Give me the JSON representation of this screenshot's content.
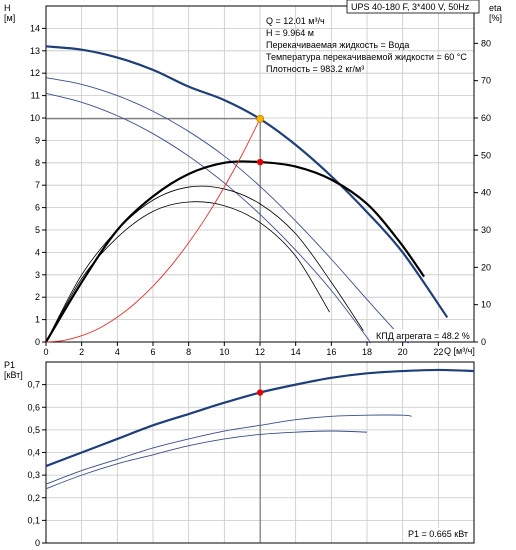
{
  "chart_data": {
    "type": "line",
    "title": "UPS 40-180 F, 3*400 V, 50Hz",
    "top_chart": {
      "xlabel": "Q [м³/ч]",
      "xlim": [
        0,
        24
      ],
      "xticks": [
        0,
        2,
        4,
        6,
        8,
        10,
        12,
        14,
        16,
        18,
        20,
        22
      ],
      "ylabel_left": "H",
      "ylabel_left_unit": "[м]",
      "ylim_left": [
        0,
        15
      ],
      "yticks_left": [
        0,
        1,
        2,
        3,
        4,
        5,
        6,
        7,
        8,
        9,
        10,
        11,
        12,
        13,
        14
      ],
      "ylabel_right": "eta",
      "ylabel_right_unit": "[%]",
      "ylim_right": [
        0,
        90
      ],
      "yticks_right": [
        0,
        10,
        20,
        30,
        40,
        50,
        60,
        70,
        80
      ],
      "info_lines": [
        "Q = 12.01 м³/ч",
        "H = 9.964 м",
        "Перекачиваемая жидкость = Вода",
        "Температура перекачиваемой жидкости = 60 °C",
        "Плотность = 983.2 кг/м³"
      ],
      "efficiency_label": "КПД агрегата = 48.2 %",
      "head_curves": [
        {
          "x": [
            0,
            2,
            4,
            6,
            8,
            10,
            12,
            14,
            16,
            18,
            20,
            22.5
          ],
          "y": [
            13.2,
            13.05,
            12.7,
            12.15,
            11.4,
            10.8,
            9.96,
            8.8,
            7.4,
            5.8,
            4.0,
            1.1
          ]
        },
        {
          "x": [
            0,
            2,
            4,
            6,
            8,
            10,
            12,
            14,
            16,
            18,
            20,
            20.4
          ],
          "y": [
            11.8,
            11.5,
            11.0,
            10.3,
            9.4,
            8.3,
            6.95,
            5.4,
            3.7,
            1.9,
            0.15,
            0
          ]
        },
        {
          "x": [
            0,
            2,
            4,
            6,
            8,
            10,
            12,
            14,
            16,
            18,
            18.1
          ],
          "y": [
            11.1,
            10.7,
            10.1,
            9.3,
            8.3,
            7.1,
            5.7,
            4.1,
            2.3,
            0.2,
            0
          ]
        }
      ],
      "efficiency_curves": [
        {
          "x": [
            0,
            2,
            4,
            6,
            8,
            10,
            12,
            14,
            16,
            18,
            19.8,
            21.2
          ],
          "y": [
            0,
            16,
            30,
            39,
            45,
            48,
            48.2,
            47.0,
            43.5,
            37.0,
            27.0,
            17.5
          ]
        },
        {
          "x": [
            0,
            2,
            4,
            6,
            8,
            10,
            12,
            14,
            16,
            17.8
          ],
          "y": [
            0,
            18,
            30,
            38,
            41.5,
            41.0,
            37.0,
            29.0,
            16.0,
            3.0
          ]
        },
        {
          "x": [
            0,
            2,
            4,
            6,
            8,
            10,
            12,
            14,
            15.9
          ],
          "y": [
            0,
            17,
            28,
            35,
            37.5,
            36.5,
            32.0,
            23.0,
            8.0
          ]
        }
      ],
      "system_curve": {
        "x": [
          0,
          1,
          2,
          3,
          4,
          5,
          6,
          7,
          8,
          9,
          10,
          11,
          12
        ],
        "y": [
          0,
          0.07,
          0.28,
          0.62,
          1.11,
          1.73,
          2.49,
          3.39,
          4.43,
          5.6,
          6.92,
          8.37,
          9.96
        ]
      },
      "duty_point": {
        "x": 12.01,
        "y": 9.964
      },
      "efficiency_point": {
        "x": 12.01,
        "y": 48.2
      },
      "colors": {
        "primary_curve": "#1f3f7a",
        "secondary_curve": "#3a4f8a",
        "efficiency_curve": "#000000",
        "system_curve": "#e03030",
        "duty_point": "#f4b400",
        "point": "#e00000",
        "guide": "#606060"
      }
    },
    "bottom_chart": {
      "xlim": [
        0,
        24
      ],
      "ylabel": "P1",
      "ylabel_unit": "[кВт]",
      "ylim": [
        0,
        0.8
      ],
      "yticks": [
        0,
        0.1,
        0.2,
        0.3,
        0.4,
        0.5,
        0.6,
        0.7
      ],
      "ytick_labels": [
        "0",
        "0,1",
        "0,2",
        "0,3",
        "0,4",
        "0,5",
        "0,6",
        "0,7"
      ],
      "power_label": "P1 = 0.665 кВт",
      "power_curves": [
        {
          "x": [
            0,
            2,
            4,
            6,
            8,
            10,
            12,
            14,
            16,
            18,
            20,
            22,
            24
          ],
          "y": [
            0.34,
            0.4,
            0.46,
            0.52,
            0.57,
            0.62,
            0.665,
            0.7,
            0.73,
            0.75,
            0.76,
            0.765,
            0.76
          ]
        },
        {
          "x": [
            0,
            2,
            4,
            6,
            8,
            10,
            12,
            14,
            16,
            18,
            20,
            20.5
          ],
          "y": [
            0.26,
            0.32,
            0.37,
            0.42,
            0.46,
            0.495,
            0.52,
            0.545,
            0.56,
            0.565,
            0.565,
            0.56
          ]
        },
        {
          "x": [
            0,
            2,
            4,
            6,
            8,
            10,
            12,
            14,
            16,
            18
          ],
          "y": [
            0.24,
            0.3,
            0.35,
            0.39,
            0.43,
            0.46,
            0.48,
            0.49,
            0.495,
            0.49
          ]
        }
      ],
      "point": {
        "x": 12.01,
        "y": 0.665
      }
    }
  }
}
